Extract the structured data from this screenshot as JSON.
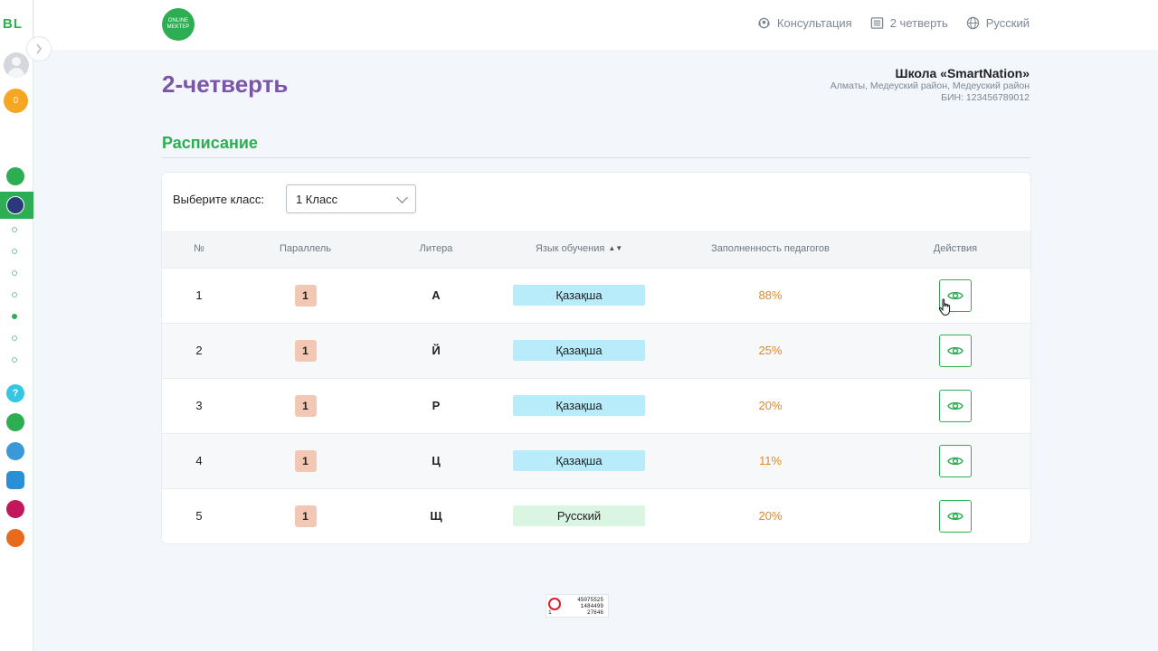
{
  "rail": {
    "brand": "BL",
    "coins": "0",
    "help": "?"
  },
  "topbar": {
    "logo_text": "ONLINE MEKTEP",
    "nav": [
      {
        "label": "Консультация",
        "icon": "headset-icon"
      },
      {
        "label": "2 четверть",
        "icon": "list-icon"
      },
      {
        "label": "Русский",
        "icon": "globe-icon"
      }
    ]
  },
  "header": {
    "title": "2-четверть",
    "school_name": "Школа «SmartNation»",
    "school_address": "Алматы, Медеуский район, Медеуский район",
    "school_bin": "БИН: 123456789012"
  },
  "section": {
    "title": "Расписание"
  },
  "filter": {
    "label": "Выберите класс:",
    "selected": "1 Класс"
  },
  "table": {
    "columns": [
      "№",
      "Параллель",
      "Литера",
      "Язык обучения",
      "Заполненность педагогов",
      "Действия"
    ],
    "rows": [
      {
        "num": "1",
        "parallel": "1",
        "letter": "А",
        "language": "Қазақша",
        "lang_type": "kz",
        "fill": "88%"
      },
      {
        "num": "2",
        "parallel": "1",
        "letter": "Й",
        "language": "Қазақша",
        "lang_type": "kz",
        "fill": "25%"
      },
      {
        "num": "3",
        "parallel": "1",
        "letter": "Р",
        "language": "Қазақша",
        "lang_type": "kz",
        "fill": "20%"
      },
      {
        "num": "4",
        "parallel": "1",
        "letter": "Ц",
        "language": "Қазақша",
        "lang_type": "kz",
        "fill": "11%"
      },
      {
        "num": "5",
        "parallel": "1",
        "letter": "Щ",
        "language": "Русский",
        "lang_type": "ru",
        "fill": "20%"
      }
    ]
  },
  "counter": {
    "line1": "45075525",
    "line2": "1484499",
    "line3": "27646",
    "left": "1"
  },
  "colors": {
    "accent_green": "#2eae52",
    "title_purple": "#7a55a8",
    "percent_orange": "#e08a2c",
    "kz_badge": "#b9ecfa",
    "ru_badge": "#dbf5e3",
    "parallel_badge": "#f2c8b4"
  }
}
